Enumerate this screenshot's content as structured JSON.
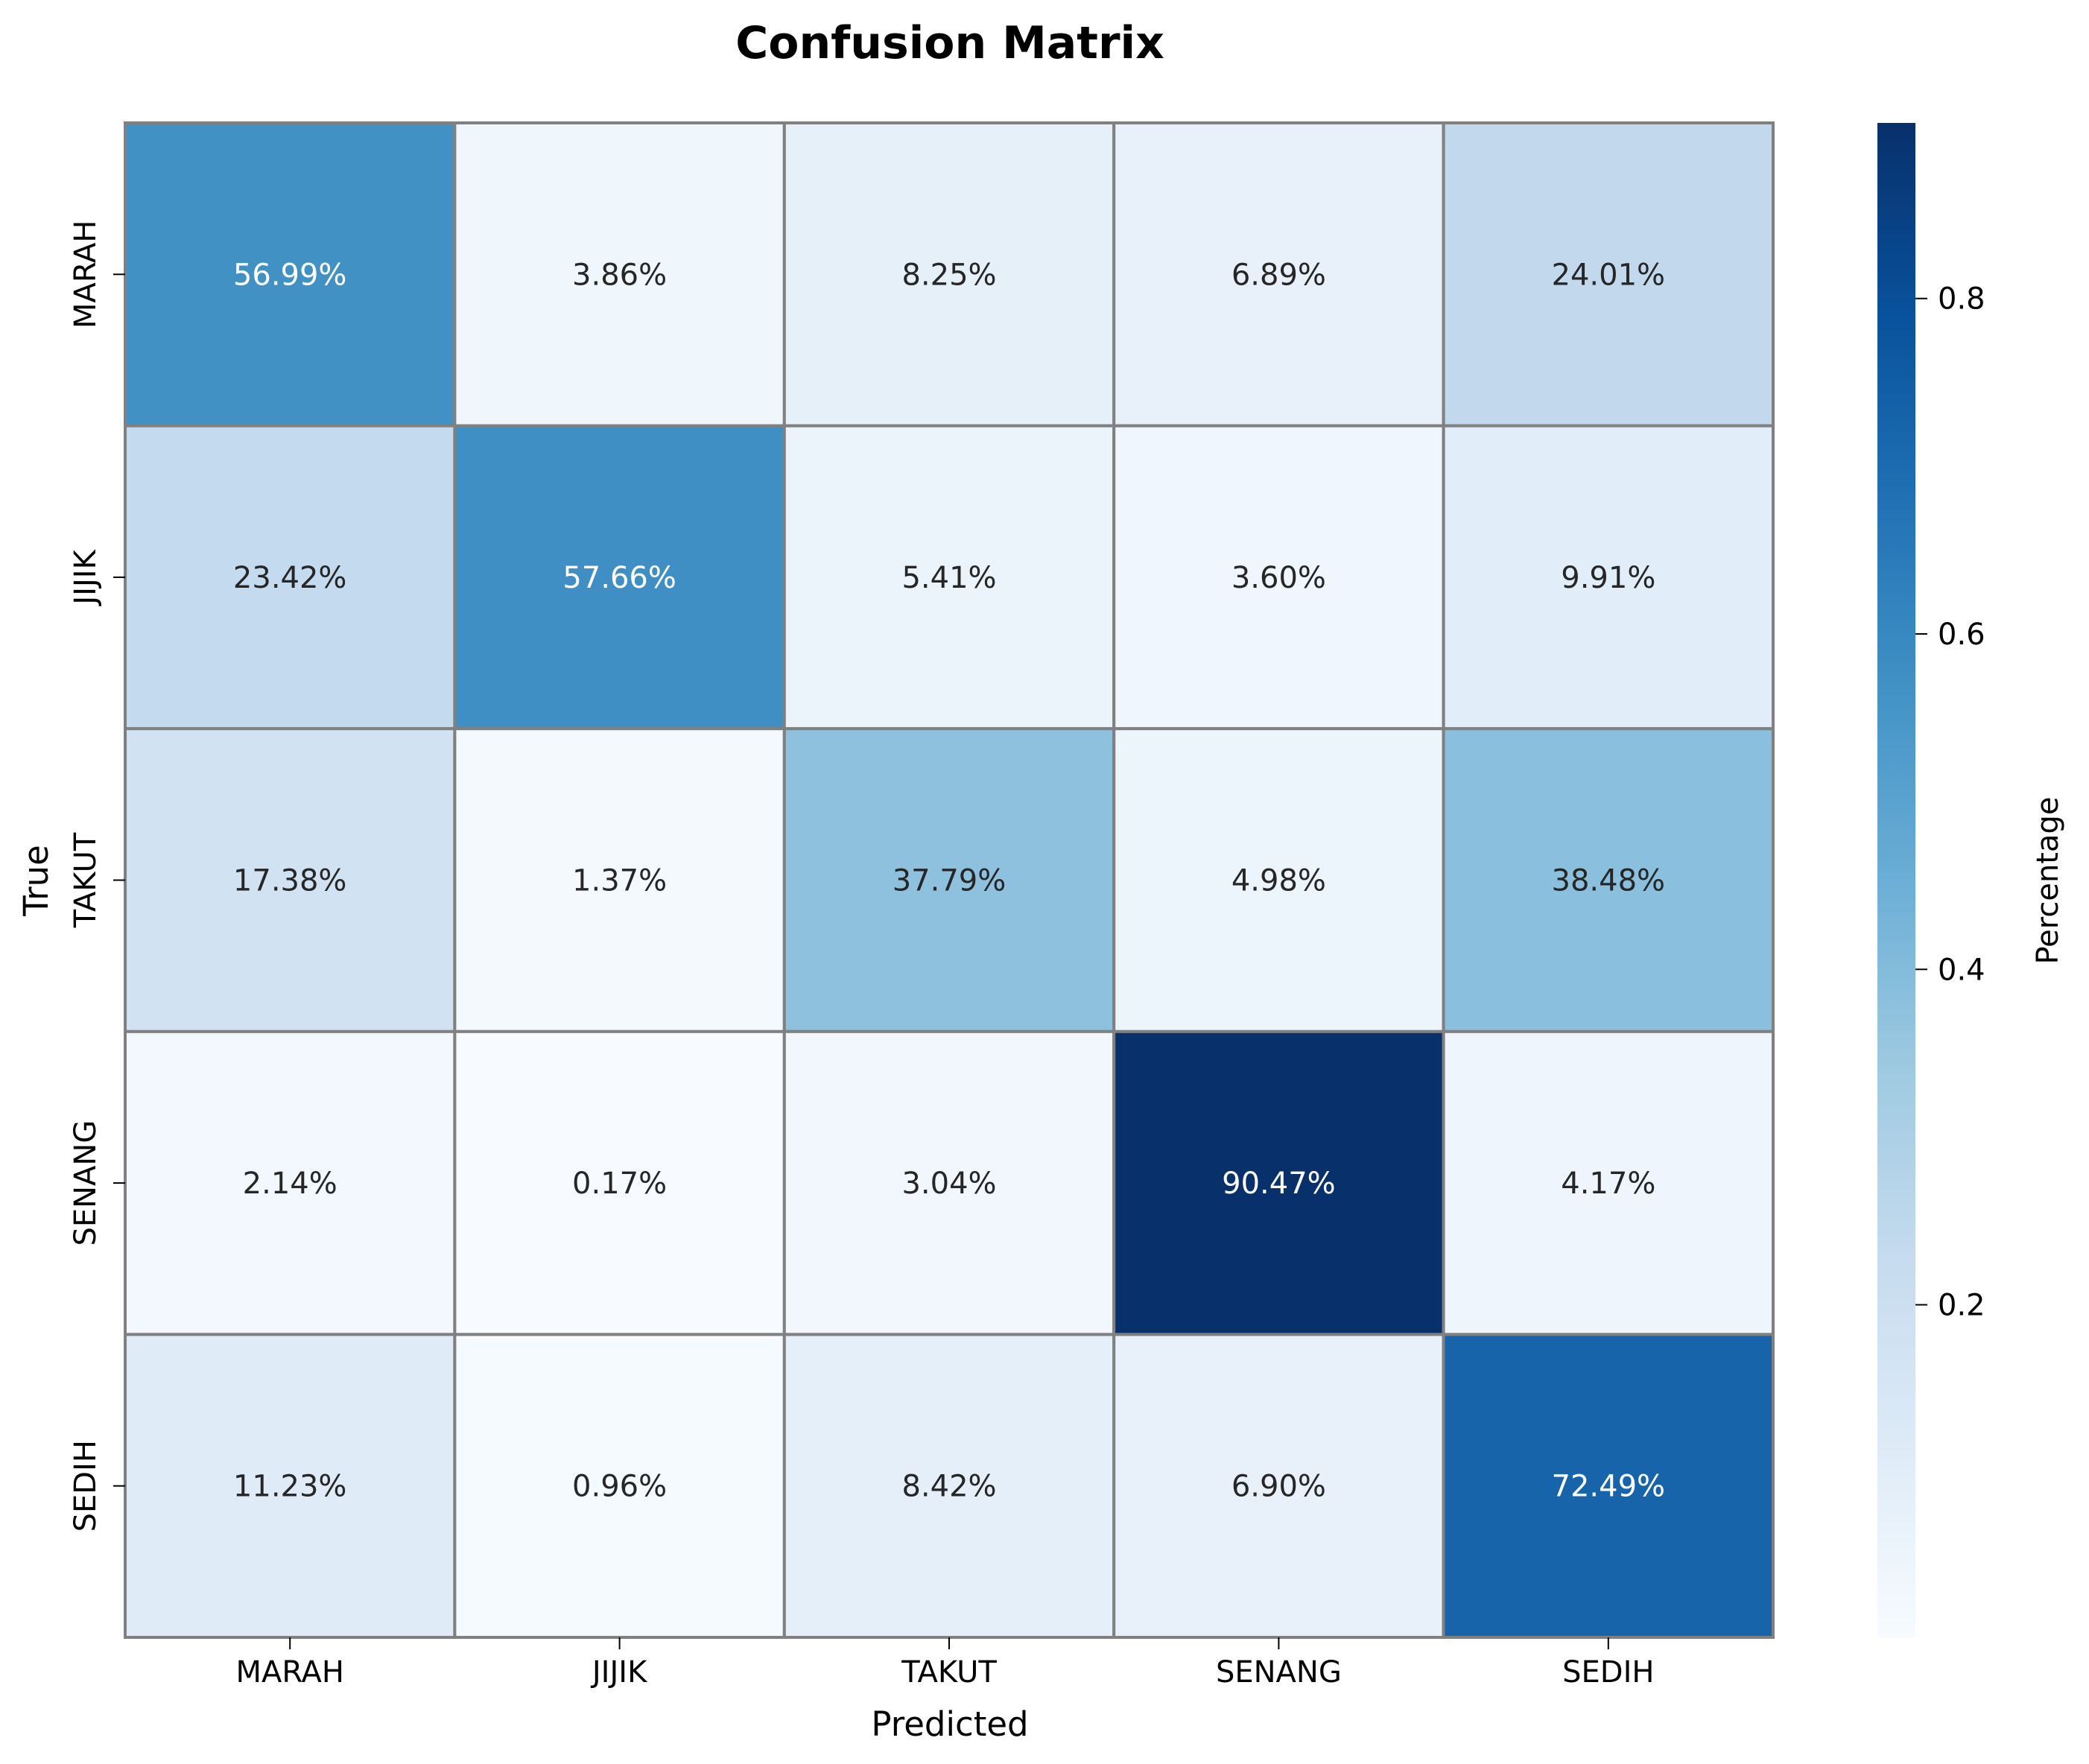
{
  "chart_data": {
    "type": "heatmap",
    "title": "Confusion Matrix",
    "xlabel": "Predicted",
    "ylabel": "True",
    "x_categories": [
      "MARAH",
      "JIJIK",
      "TAKUT",
      "SENANG",
      "SEDIH"
    ],
    "y_categories": [
      "MARAH",
      "JIJIK",
      "TAKUT",
      "SENANG",
      "SEDIH"
    ],
    "values": [
      [
        56.99,
        3.86,
        8.25,
        6.89,
        24.01
      ],
      [
        23.42,
        57.66,
        5.41,
        3.6,
        9.91
      ],
      [
        17.38,
        1.37,
        37.79,
        4.98,
        38.48
      ],
      [
        2.14,
        0.17,
        3.04,
        90.47,
        4.17
      ],
      [
        11.23,
        0.96,
        8.42,
        6.9,
        72.49
      ]
    ],
    "cell_labels": [
      [
        "56.99%",
        "3.86%",
        "8.25%",
        "6.89%",
        "24.01%"
      ],
      [
        "23.42%",
        "57.66%",
        "5.41%",
        "3.60%",
        "9.91%"
      ],
      [
        "17.38%",
        "1.37%",
        "37.79%",
        "4.98%",
        "38.48%"
      ],
      [
        "2.14%",
        "0.17%",
        "3.04%",
        "90.47%",
        "4.17%"
      ],
      [
        "11.23%",
        "0.96%",
        "8.42%",
        "6.90%",
        "72.49%"
      ]
    ],
    "colorbar": {
      "label": "Percentage",
      "range": [
        0.0017,
        0.9047
      ],
      "ticks": [
        0.2,
        0.4,
        0.6,
        0.8
      ],
      "tick_labels": [
        "0.2",
        "0.4",
        "0.6",
        "0.8"
      ],
      "colormap": "Blues"
    },
    "grid": true,
    "legend": "colorbar-right",
    "colors": {
      "cell_border": "#808080",
      "text_dark": "#262626",
      "text_light": "#ffffff",
      "blues": [
        "#f7fbff",
        "#deebf7",
        "#c6dbef",
        "#9ecae1",
        "#6baed6",
        "#4292c6",
        "#2171b5",
        "#08519c",
        "#08306b"
      ]
    }
  }
}
